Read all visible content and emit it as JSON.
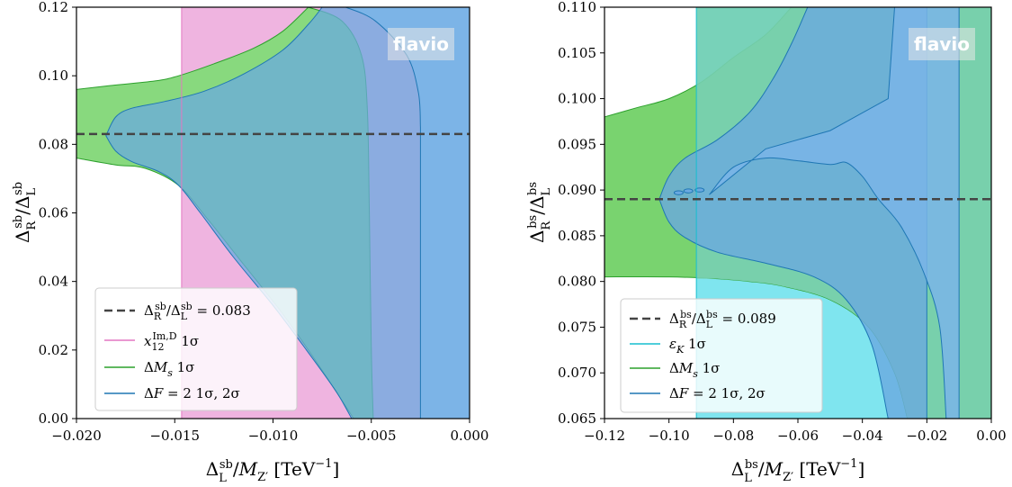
{
  "chart_data": [
    {
      "type": "area",
      "panel": "left",
      "xlabel": "Δ_L^{sb}/M_{Z′} [TeV⁻¹]",
      "ylabel": "Δ_R^{sb}/Δ_L^{sb}",
      "xlim": [
        -0.02,
        0.0
      ],
      "ylim": [
        0.0,
        0.12
      ],
      "xticks": [
        "−0.020",
        "−0.015",
        "−0.010",
        "−0.005",
        "0.000"
      ],
      "yticks": [
        "0.00",
        "0.02",
        "0.04",
        "0.06",
        "0.08",
        "0.10",
        "0.12"
      ],
      "watermark": "flavio",
      "grid": false,
      "legend_position": "lower-left",
      "colors": {
        "pink": "#e377c2",
        "green": "#2ca02c",
        "blue": "#1f77b4",
        "dash": "#444444"
      },
      "hline": {
        "y": 0.083,
        "label": "Δ_R^{sb}/Δ_L^{sb} = 0.083"
      },
      "series": [
        {
          "name": "x_12^{Im,D} 1σ",
          "color": "#e377c2",
          "region": {
            "x_min": -0.01465,
            "x_max": 0.0
          }
        },
        {
          "name": "ΔM_s 1σ",
          "color": "#2ca02c",
          "upper": [
            [
              -0.02,
              0.096
            ],
            [
              -0.0185,
              0.097
            ],
            [
              -0.016,
              0.0985
            ],
            [
              -0.0148,
              0.1
            ],
            [
              -0.013,
              0.1035
            ],
            [
              -0.011,
              0.108
            ],
            [
              -0.0095,
              0.113
            ],
            [
              -0.0082,
              0.12
            ]
          ],
          "lower": [
            [
              -0.02,
              0.076
            ],
            [
              -0.018,
              0.074
            ],
            [
              -0.0165,
              0.073
            ],
            [
              -0.0148,
              0.068
            ],
            [
              -0.0133,
              0.058
            ],
            [
              -0.0115,
              0.045
            ],
            [
              -0.0097,
              0.032
            ],
            [
              -0.0082,
              0.02
            ],
            [
              -0.0068,
              0.008
            ],
            [
              -0.0059,
              0.0
            ]
          ],
          "right_edge": [
            [
              -0.0082,
              0.12
            ],
            [
              -0.0065,
              0.116
            ],
            [
              -0.0055,
              0.106
            ],
            [
              -0.0052,
              0.09
            ],
            [
              -0.0051,
              0.06
            ],
            [
              -0.005,
              0.02
            ],
            [
              -0.0049,
              0.0
            ]
          ]
        },
        {
          "name": "ΔF = 2 1σ, 2σ",
          "color": "#1f77b4",
          "boundary_top": [
            [
              -0.0185,
              0.0825
            ],
            [
              -0.018,
              0.088
            ],
            [
              -0.0172,
              0.0905
            ],
            [
              -0.0155,
              0.0925
            ],
            [
              -0.0135,
              0.0955
            ],
            [
              -0.0115,
              0.1005
            ],
            [
              -0.0095,
              0.1075
            ],
            [
              -0.0082,
              0.115
            ],
            [
              -0.0075,
              0.12
            ]
          ],
          "boundary_bottom": [
            [
              -0.0185,
              0.0825
            ],
            [
              -0.018,
              0.078
            ],
            [
              -0.0172,
              0.075
            ],
            [
              -0.0158,
              0.072
            ],
            [
              -0.0148,
              0.068
            ],
            [
              -0.0137,
              0.06
            ],
            [
              -0.012,
              0.047
            ],
            [
              -0.01,
              0.033
            ],
            [
              -0.0083,
              0.02
            ],
            [
              -0.0068,
              0.008
            ],
            [
              -0.006,
              0.0
            ]
          ],
          "inner_edge": [
            [
              -0.0063,
              0.12
            ],
            [
              -0.0048,
              0.116
            ],
            [
              -0.0032,
              0.106
            ],
            [
              -0.0026,
              0.095
            ],
            [
              -0.0025,
              0.085
            ]
          ]
        }
      ]
    },
    {
      "type": "area",
      "panel": "right",
      "xlabel": "Δ_L^{bs}/M_{Z′} [TeV⁻¹]",
      "ylabel": "Δ_R^{bs}/Δ_L^{bs}",
      "xlim": [
        -0.12,
        0.0
      ],
      "ylim": [
        0.065,
        0.11
      ],
      "xticks": [
        "−0.12",
        "−0.10",
        "−0.08",
        "−0.06",
        "−0.04",
        "−0.02",
        "0.00"
      ],
      "yticks": [
        "0.065",
        "0.070",
        "0.075",
        "0.080",
        "0.085",
        "0.090",
        "0.095",
        "0.100",
        "0.105",
        "0.110"
      ],
      "watermark": "flavio",
      "grid": false,
      "legend_position": "lower-left",
      "colors": {
        "cyan": "#17becf",
        "green": "#2ca02c",
        "blue": "#1f77b4",
        "dash": "#444444"
      },
      "hline": {
        "y": 0.089,
        "label": "Δ_R^{bs}/Δ_L^{bs} = 0.089"
      },
      "series": [
        {
          "name": "ε_K 1σ",
          "color": "#17becf",
          "region": {
            "x_min": -0.0915,
            "x_max": 0.0
          }
        },
        {
          "name": "ΔM_s 1σ",
          "color": "#2ca02c",
          "upper": [
            [
              -0.12,
              0.098
            ],
            [
              -0.11,
              0.099
            ],
            [
              -0.1,
              0.1
            ],
            [
              -0.09,
              0.1018
            ],
            [
              -0.08,
              0.1045
            ],
            [
              -0.07,
              0.107
            ],
            [
              -0.062,
              0.11
            ]
          ],
          "lower": [
            [
              -0.12,
              0.0805
            ],
            [
              -0.1,
              0.0805
            ],
            [
              -0.085,
              0.0803
            ],
            [
              -0.075,
              0.08
            ],
            [
              -0.065,
              0.0795
            ],
            [
              -0.05,
              0.078
            ],
            [
              -0.038,
              0.075
            ],
            [
              -0.03,
              0.07
            ],
            [
              -0.026,
              0.065
            ]
          ]
        },
        {
          "name": "ΔF = 2 1σ, 2σ",
          "color": "#1f77b4",
          "outer_top": [
            [
              -0.103,
              0.089
            ],
            [
              -0.1,
              0.0915
            ],
            [
              -0.095,
              0.0935
            ],
            [
              -0.085,
              0.0955
            ],
            [
              -0.075,
              0.0985
            ],
            [
              -0.068,
              0.102
            ],
            [
              -0.062,
              0.106
            ],
            [
              -0.057,
              0.11
            ]
          ],
          "outer_bottom": [
            [
              -0.103,
              0.089
            ],
            [
              -0.1,
              0.0865
            ],
            [
              -0.095,
              0.0848
            ],
            [
              -0.085,
              0.0832
            ],
            [
              -0.07,
              0.082
            ],
            [
              -0.055,
              0.0805
            ],
            [
              -0.045,
              0.078
            ],
            [
              -0.037,
              0.073
            ],
            [
              -0.032,
              0.065
            ]
          ],
          "inner_tongue": [
            [
              -0.0875,
              0.0895
            ],
            [
              -0.08,
              0.0925
            ],
            [
              -0.07,
              0.0935
            ],
            [
              -0.06,
              0.0932
            ],
            [
              -0.05,
              0.0928
            ],
            [
              -0.045,
              0.093
            ],
            [
              -0.04,
              0.0915
            ],
            [
              -0.035,
              0.089
            ],
            [
              -0.028,
              0.086
            ],
            [
              -0.021,
              0.081
            ],
            [
              -0.016,
              0.075
            ],
            [
              -0.014,
              0.065
            ]
          ]
        }
      ]
    }
  ],
  "legends": {
    "left": [
      {
        "label": "Δ_R^{sb}/Δ_L^{sb} = 0.083",
        "style": "dashed",
        "color": "#444444"
      },
      {
        "label": "x_12^{Im,D} 1σ",
        "style": "line",
        "color": "#e377c2"
      },
      {
        "label": "ΔM_s 1σ",
        "style": "line",
        "color": "#2ca02c"
      },
      {
        "label": "ΔF = 2 1σ, 2σ",
        "style": "line",
        "color": "#1f77b4"
      }
    ],
    "right": [
      {
        "label": "Δ_R^{bs}/Δ_L^{bs} = 0.089",
        "style": "dashed",
        "color": "#444444"
      },
      {
        "label": "ε_K 1σ",
        "style": "line",
        "color": "#17becf"
      },
      {
        "label": "ΔM_s 1σ",
        "style": "line",
        "color": "#2ca02c"
      },
      {
        "label": "ΔF = 2 1σ, 2σ",
        "style": "line",
        "color": "#1f77b4"
      }
    ]
  }
}
